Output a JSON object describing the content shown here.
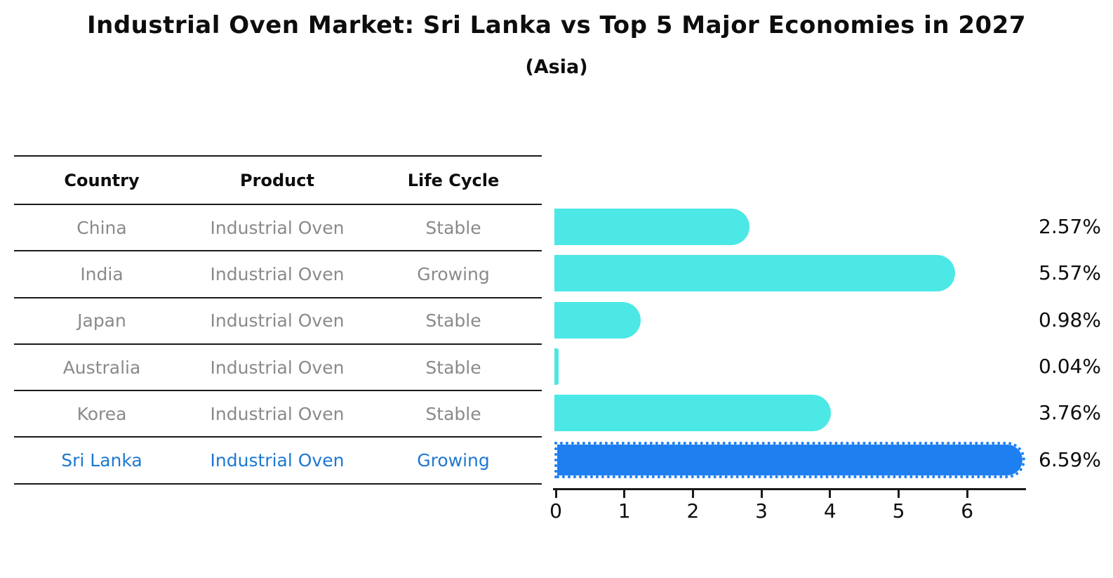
{
  "header": {
    "title": "Industrial Oven Market: Sri Lanka vs Top 5 Major Economies in 2027",
    "subtitle": "(Asia)"
  },
  "table": {
    "columns": [
      "Country",
      "Product",
      "Life Cycle"
    ]
  },
  "chart_data": {
    "type": "bar",
    "orientation": "horizontal",
    "title": "Industrial Oven Market: Sri Lanka vs Top 5 Major Economies in 2027",
    "subtitle": "(Asia)",
    "categories": [
      "China",
      "India",
      "Japan",
      "Australia",
      "Korea",
      "Sri Lanka"
    ],
    "rows": [
      {
        "country": "China",
        "product": "Industrial Oven",
        "life_cycle": "Stable",
        "value": 2.57,
        "label": "2.57%",
        "highlight": false
      },
      {
        "country": "India",
        "product": "Industrial Oven",
        "life_cycle": "Growing",
        "value": 5.57,
        "label": "5.57%",
        "highlight": false
      },
      {
        "country": "Japan",
        "product": "Industrial Oven",
        "life_cycle": "Stable",
        "value": 0.98,
        "label": "0.98%",
        "highlight": false
      },
      {
        "country": "Australia",
        "product": "Industrial Oven",
        "life_cycle": "Stable",
        "value": 0.04,
        "label": "0.04%",
        "highlight": false
      },
      {
        "country": "Korea",
        "product": "Industrial Oven",
        "life_cycle": "Stable",
        "value": 3.76,
        "label": "3.76%",
        "highlight": false
      },
      {
        "country": "Sri Lanka",
        "product": "Industrial Oven",
        "life_cycle": "Growing",
        "value": 6.59,
        "label": "6.59%",
        "highlight": true
      }
    ],
    "xlim": [
      0,
      6.9
    ],
    "xticks": [
      "0",
      "1",
      "2",
      "3",
      "4",
      "5",
      "6"
    ],
    "grid": false,
    "legend": "none",
    "colors": {
      "bar": "#4be8e6",
      "highlight_bar": "#1e80f0",
      "highlight_text": "#1e78d2",
      "text_gray": "#8a8a8a",
      "axis": "#1a1a1a"
    }
  }
}
